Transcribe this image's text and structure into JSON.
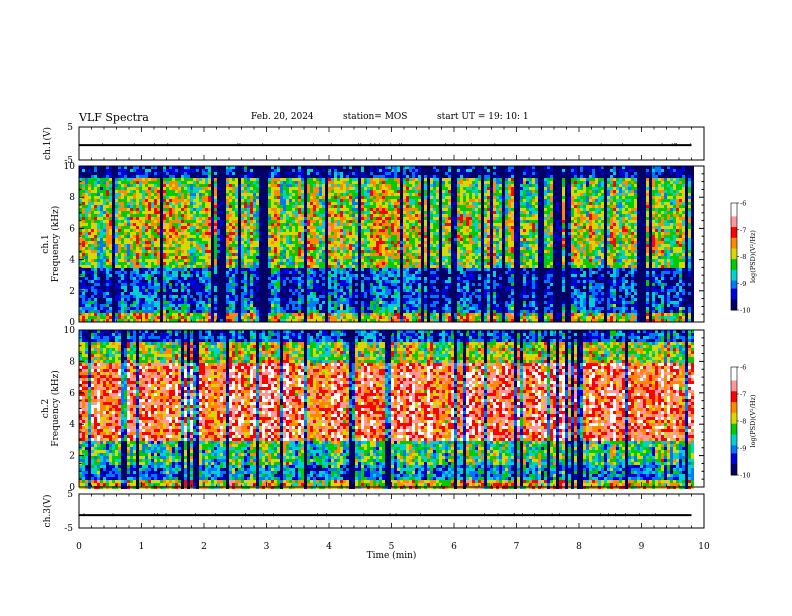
{
  "header": {
    "title": "VLF Spectra",
    "date": "Feb. 20, 2024",
    "station": "station= MOS",
    "start": "start  UT  =    19: 10: 1"
  },
  "colorbar": {
    "label": "log(PSD)(V²/Hz)",
    "ticks": [
      "-6",
      "-7",
      "-8",
      "-9",
      "-10"
    ],
    "colors": [
      "#000066",
      "#0000dd",
      "#0077ff",
      "#00d0d0",
      "#00cc00",
      "#d8d800",
      "#ff8800",
      "#ff0000",
      "#ff9999",
      "#ffffff"
    ]
  },
  "chart_data": [
    {
      "type": "line",
      "panel": "ch.1(V)",
      "ylabel": "ch.1(V)",
      "ylim": [
        -5,
        5
      ],
      "ytick_labels": [
        "5",
        "-5"
      ],
      "x": [
        0,
        9.8
      ],
      "values": [
        -0.5,
        -0.5
      ]
    },
    {
      "type": "heatmap",
      "panel": "ch.1",
      "ylabel": "ch.1 Frequency (kHz)",
      "xlim": [
        0,
        10
      ],
      "ylim": [
        0,
        10
      ],
      "ytick_labels": [
        "0",
        "2",
        "4",
        "6",
        "8",
        "10"
      ],
      "data_xlim": [
        0,
        9.83
      ],
      "value_range": [
        -10,
        -6
      ],
      "colorbar_label": "log(PSD)(V²/Hz)"
    },
    {
      "type": "heatmap",
      "panel": "ch.2",
      "ylabel": "ch.2 Frequency (kHz)",
      "xlim": [
        0,
        10
      ],
      "ylim": [
        0,
        10
      ],
      "ytick_labels": [
        "0",
        "2",
        "4",
        "6",
        "8",
        "10"
      ],
      "data_xlim": [
        0,
        9.83
      ],
      "value_range": [
        -10,
        -6
      ],
      "colorbar_label": "log(PSD)(V²/Hz)"
    },
    {
      "type": "line",
      "panel": "ch.3(V)",
      "ylabel": "ch.3(V)",
      "ylim": [
        -5,
        5
      ],
      "ytick_labels": [
        "5",
        "-5"
      ],
      "x": [
        0,
        9.8
      ],
      "values": [
        -1.2,
        -1.2
      ]
    }
  ],
  "xaxis": {
    "label": "Time (min)",
    "range": [
      0,
      10
    ],
    "ticks": [
      "0",
      "1",
      "2",
      "3",
      "4",
      "5",
      "6",
      "7",
      "8",
      "9",
      "10"
    ]
  }
}
